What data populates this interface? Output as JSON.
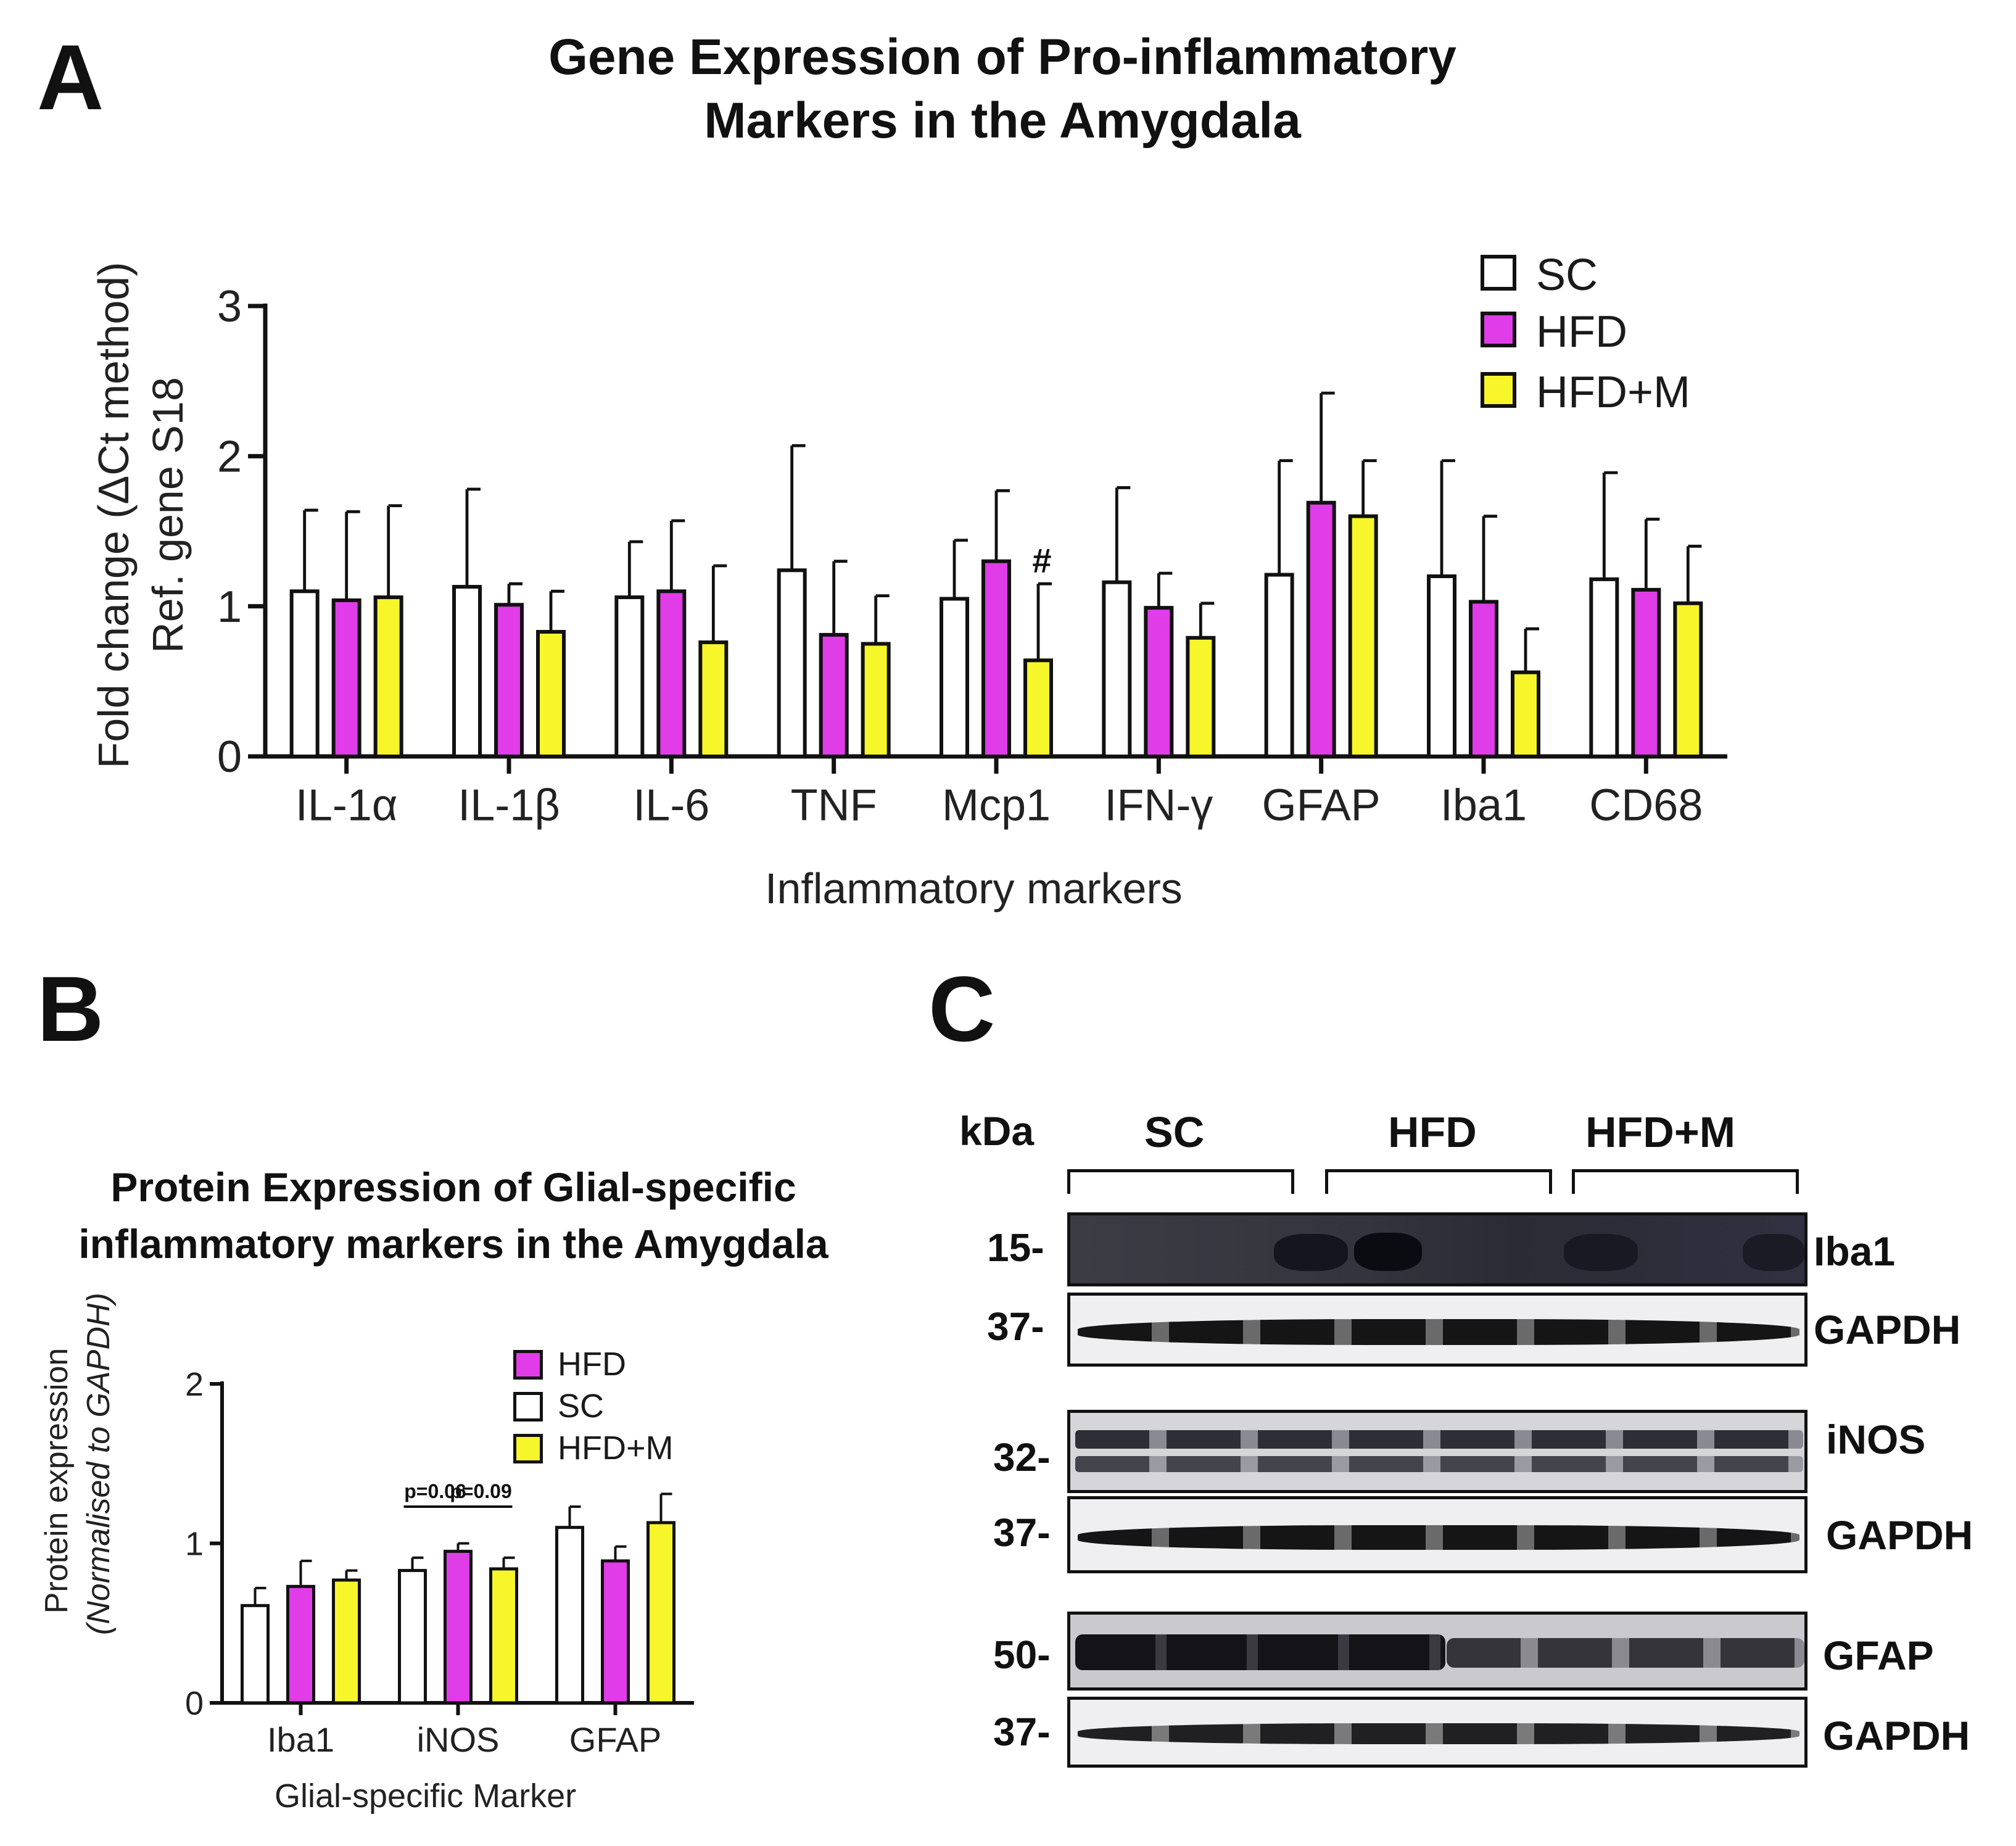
{
  "panelA": {
    "letter": "A",
    "title_line1": "Gene Expression of Pro-inflammatory",
    "title_line2": "Markers in the Amygdala",
    "ylabel_line1": "Fold change (ΔCt  method)",
    "ylabel_line2": "Ref. gene S18",
    "xlabel": "Inflammatory markers",
    "legend": [
      {
        "label": "SC",
        "color": "#ffffff"
      },
      {
        "label": "HFD",
        "color": "#e03ce8"
      },
      {
        "label": "HFD+M",
        "color": "#f6f62a"
      }
    ],
    "annotation": "#"
  },
  "panelB": {
    "letter": "B",
    "title_line1": "Protein Expression of Glial-specific",
    "title_line2": "inflammatory markers in the Amygdala",
    "ylabel_line1": "Protein expression",
    "ylabel_line2": "(Normalised to GAPDH)",
    "xlabel": "Glial-specific Marker",
    "legend": [
      {
        "label": "HFD",
        "color": "#e03ce8"
      },
      {
        "label": "SC",
        "color": "#ffffff"
      },
      {
        "label": "HFD+M",
        "color": "#f6f62a"
      }
    ],
    "pvalues": [
      "p=0.06",
      "p=0.09"
    ]
  },
  "panelC": {
    "letter": "C",
    "kda_label": "kDa",
    "groups": [
      "SC",
      "HFD",
      "HFD+M"
    ],
    "blots": [
      {
        "kda": "15-",
        "protein": "Iba1"
      },
      {
        "kda": "37-",
        "protein": "GAPDH"
      },
      {
        "kda": "32-",
        "protein": "iNOS"
      },
      {
        "kda": "37-",
        "protein": "GAPDH"
      },
      {
        "kda": "50-",
        "protein": "GFAP"
      },
      {
        "kda": "37-",
        "protein": "GAPDH"
      }
    ]
  },
  "chart_data": [
    {
      "type": "bar",
      "title": "Gene Expression of Pro-inflammatory Markers in the Amygdala",
      "xlabel": "Inflammatory markers",
      "ylabel": "Fold change (ΔCt method) Ref. gene S18",
      "ylim": [
        0,
        3
      ],
      "yticks": [
        0,
        1,
        2,
        3
      ],
      "categories": [
        "IL-1α",
        "IL-1β",
        "IL-6",
        "TNF",
        "Mcp1",
        "IFN-γ",
        "GFAP",
        "Iba1",
        "CD68"
      ],
      "series": [
        {
          "name": "SC",
          "color": "#ffffff",
          "values": [
            1.1,
            1.13,
            1.06,
            1.24,
            1.05,
            1.16,
            1.21,
            1.2,
            1.18
          ],
          "errors": [
            0.54,
            0.65,
            0.37,
            0.83,
            0.39,
            0.63,
            0.76,
            0.77,
            0.71
          ]
        },
        {
          "name": "HFD",
          "color": "#e03ce8",
          "values": [
            1.04,
            1.01,
            1.1,
            0.81,
            1.3,
            0.99,
            1.69,
            1.03,
            1.11
          ],
          "errors": [
            0.59,
            0.14,
            0.47,
            0.49,
            0.47,
            0.23,
            0.73,
            0.57,
            0.47
          ]
        },
        {
          "name": "HFD+M",
          "color": "#f6f62a",
          "values": [
            1.06,
            0.83,
            0.76,
            0.75,
            0.64,
            0.79,
            1.6,
            0.56,
            1.02
          ],
          "errors": [
            0.61,
            0.27,
            0.51,
            0.32,
            0.51,
            0.23,
            0.37,
            0.29,
            0.38
          ]
        }
      ],
      "annotations": [
        {
          "category": "Mcp1",
          "series": "HFD+M",
          "text": "#"
        }
      ]
    },
    {
      "type": "bar",
      "title": "Protein Expression of Glial-specific inflammatory markers in the Amygdala",
      "xlabel": "Glial-specific Marker",
      "ylabel": "Protein expression (Normalised to GAPDH)",
      "ylim": [
        0,
        2
      ],
      "yticks": [
        0,
        1,
        2
      ],
      "categories": [
        "Iba1",
        "iNOS",
        "GFAP"
      ],
      "series": [
        {
          "name": "SC",
          "color": "#ffffff",
          "values": [
            0.61,
            0.83,
            1.1
          ],
          "errors": [
            0.11,
            0.08,
            0.13
          ]
        },
        {
          "name": "HFD",
          "color": "#e03ce8",
          "values": [
            0.73,
            0.95,
            0.89
          ],
          "errors": [
            0.16,
            0.05,
            0.09
          ]
        },
        {
          "name": "HFD+M",
          "color": "#f6f62a",
          "values": [
            0.77,
            0.84,
            1.13
          ],
          "errors": [
            0.06,
            0.07,
            0.18
          ]
        }
      ],
      "annotations": [
        {
          "between": [
            "SC",
            "HFD"
          ],
          "category": "iNOS",
          "text": "p=0.06"
        },
        {
          "between": [
            "HFD",
            "HFD+M"
          ],
          "category": "iNOS",
          "text": "p=0.09"
        }
      ]
    }
  ]
}
